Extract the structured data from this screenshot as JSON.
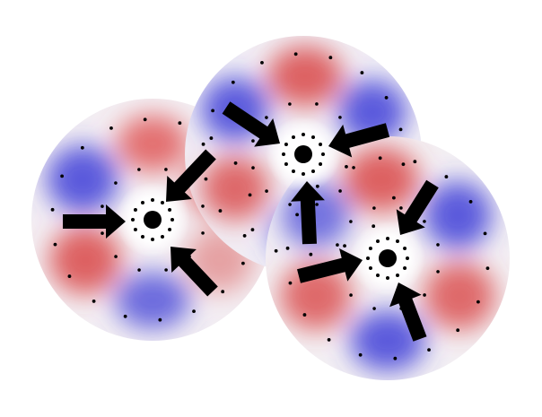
{
  "diagram": {
    "kind": "three overlapping cells with central particles and inward-pointing arrows",
    "colors": {
      "warm_lobe": "#d94848",
      "cool_lobe": "#4040d8",
      "dot": "#000000",
      "arrow": "#000000",
      "background": "#ffffff"
    },
    "cells": [
      {
        "id": "cell-left",
        "lobes": 6,
        "arrows": 3
      },
      {
        "id": "cell-top",
        "lobes": 6,
        "arrows": 3
      },
      {
        "id": "cell-right",
        "lobes": 6,
        "arrows": 3
      }
    ]
  }
}
